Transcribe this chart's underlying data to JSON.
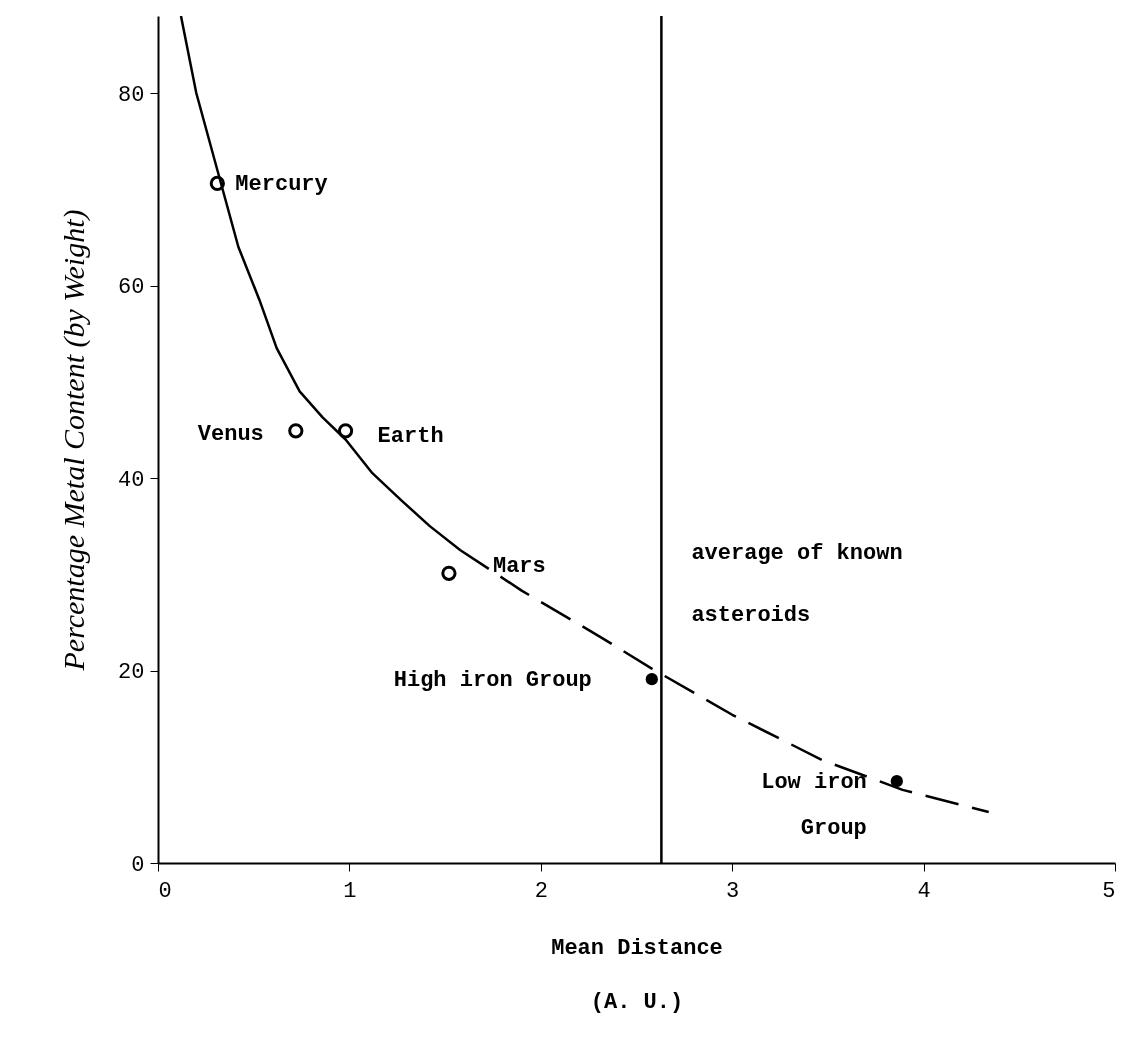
{
  "chart_data": {
    "type": "scatter",
    "xlabel": "Mean Distance (A. U.)",
    "ylabel": "Percentage Metal Content (by Weight)",
    "xlim": [
      0,
      5
    ],
    "ylim": [
      0,
      88
    ],
    "xticks": [
      0,
      1,
      2,
      3,
      4,
      5
    ],
    "yticks": [
      0,
      20,
      40,
      60,
      80
    ],
    "grid": false,
    "series": [
      {
        "type": "line",
        "line_style": "solid",
        "color": "#000000",
        "x": [
          0.12,
          0.2,
          0.31,
          0.42,
          0.53,
          0.62,
          0.74,
          0.86,
          0.98,
          1.12,
          1.27,
          1.42,
          1.58
        ],
        "values": [
          88,
          80,
          72,
          64,
          58.5,
          53.5,
          49,
          46.3,
          44,
          40.5,
          37.7,
          35,
          32.5
        ]
      },
      {
        "type": "line",
        "line_style": "dashed",
        "color": "#000000",
        "x": [
          1.58,
          1.9,
          2.31,
          2.58,
          3.0,
          3.47,
          3.89,
          4.34
        ],
        "values": [
          32.5,
          28.3,
          23.5,
          20.2,
          15.4,
          10.7,
          7.6,
          5.3
        ]
      },
      {
        "marker": "circle",
        "color": "#000000",
        "x": [
          0.31,
          0.72,
          0.98,
          1.52
        ],
        "values": [
          70.6,
          44.9,
          44.9,
          30.1
        ]
      },
      {
        "marker": "circle",
        "color": "#000000",
        "x": [
          2.58,
          3.86
        ],
        "values": [
          19.1,
          8.5
        ]
      }
    ],
    "ref_lines": [
      {
        "axis": "x",
        "value": 2.63,
        "label": "average of known asteroids",
        "color": "#000000"
      }
    ],
    "annotations": [
      {
        "text": "Mercury",
        "x": 0.31,
        "y": 70.6
      },
      {
        "text": "Venus",
        "x": 0.72,
        "y": 44.9
      },
      {
        "text": "Earth",
        "x": 0.98,
        "y": 44.9
      },
      {
        "text": "Mars",
        "x": 1.52,
        "y": 30.1
      },
      {
        "text": "High iron Group",
        "x": 2.58,
        "y": 19.1
      },
      {
        "text": "Low iron Group",
        "x": 3.86,
        "y": 8.5
      }
    ]
  }
}
